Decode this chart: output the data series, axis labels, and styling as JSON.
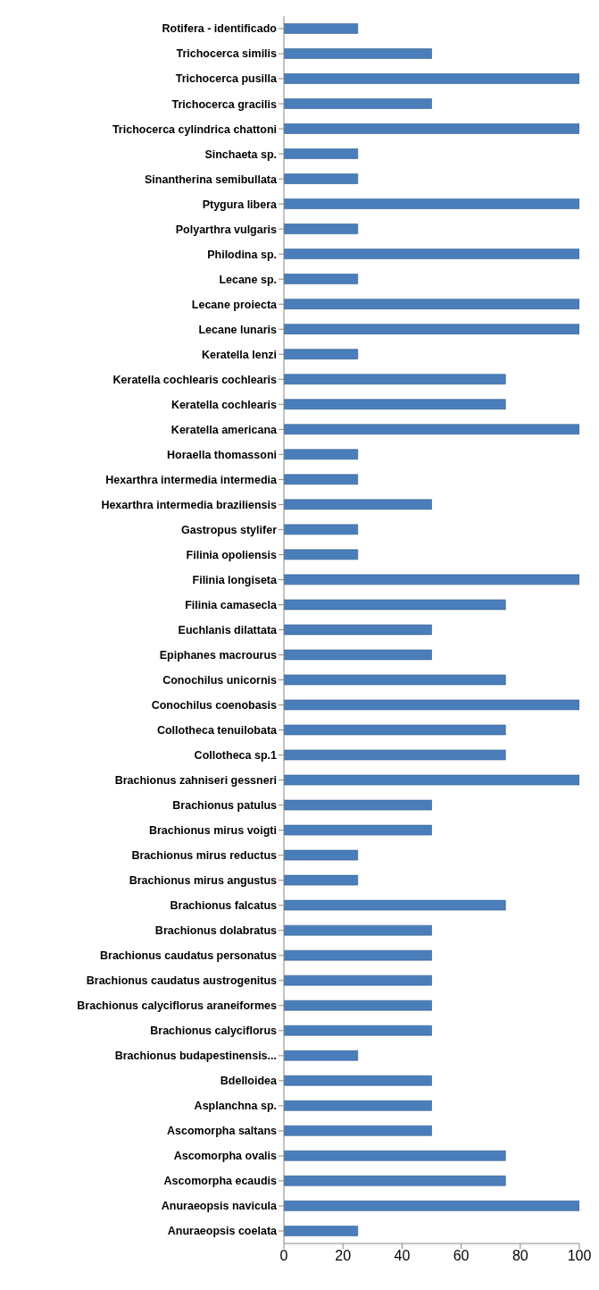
{
  "chart_data": {
    "type": "bar",
    "orientation": "horizontal",
    "categories": [
      "Rotifera - identificado",
      "Trichocerca similis",
      "Trichocerca pusilla",
      "Trichocerca gracilis",
      "Trichocerca cylindrica chattoni",
      "Sinchaeta sp.",
      "Sinantherina semibullata",
      "Ptygura libera",
      "Polyarthra vulgaris",
      "Philodina sp.",
      "Lecane sp.",
      "Lecane proiecta",
      "Lecane lunaris",
      "Keratella lenzi",
      "Keratella cochlearis cochlearis",
      "Keratella cochlearis",
      "Keratella americana",
      "Horaella thomassoni",
      "Hexarthra intermedia intermedia",
      "Hexarthra intermedia braziliensis",
      "Gastropus stylifer",
      "Filinia opoliensis",
      "Filinia longiseta",
      "Filinia camasecla",
      "Euchlanis dilattata",
      "Epiphanes macrourus",
      "Conochilus unicornis",
      "Conochilus coenobasis",
      "Collotheca tenuilobata",
      "Collotheca sp.1",
      "Brachionus zahniseri gessneri",
      "Brachionus patulus",
      "Brachionus mirus voigti",
      "Brachionus mirus reductus",
      "Brachionus mirus angustus",
      "Brachionus falcatus",
      "Brachionus dolabratus",
      "Brachionus caudatus personatus",
      "Brachionus caudatus austrogenitus",
      "Brachionus calyciflorus araneiformes",
      "Brachionus calyciflorus",
      "Brachionus budapestinensis...",
      "Bdelloidea",
      "Asplanchna sp.",
      "Ascomorpha saltans",
      "Ascomorpha ovalis",
      "Ascomorpha ecaudis",
      "Anuraeopsis navicula",
      "Anuraeopsis coelata"
    ],
    "values": [
      25,
      50,
      100,
      50,
      100,
      25,
      25,
      100,
      25,
      100,
      25,
      100,
      100,
      25,
      75,
      75,
      100,
      25,
      25,
      50,
      25,
      25,
      100,
      75,
      50,
      50,
      75,
      100,
      75,
      75,
      100,
      50,
      50,
      25,
      25,
      75,
      50,
      50,
      50,
      50,
      50,
      25,
      50,
      50,
      50,
      75,
      75,
      100,
      25
    ],
    "color": "#4a7ebb",
    "xlim": [
      0,
      100
    ],
    "xticks": [
      0,
      20,
      40,
      60,
      80,
      100
    ],
    "grid": false
  }
}
